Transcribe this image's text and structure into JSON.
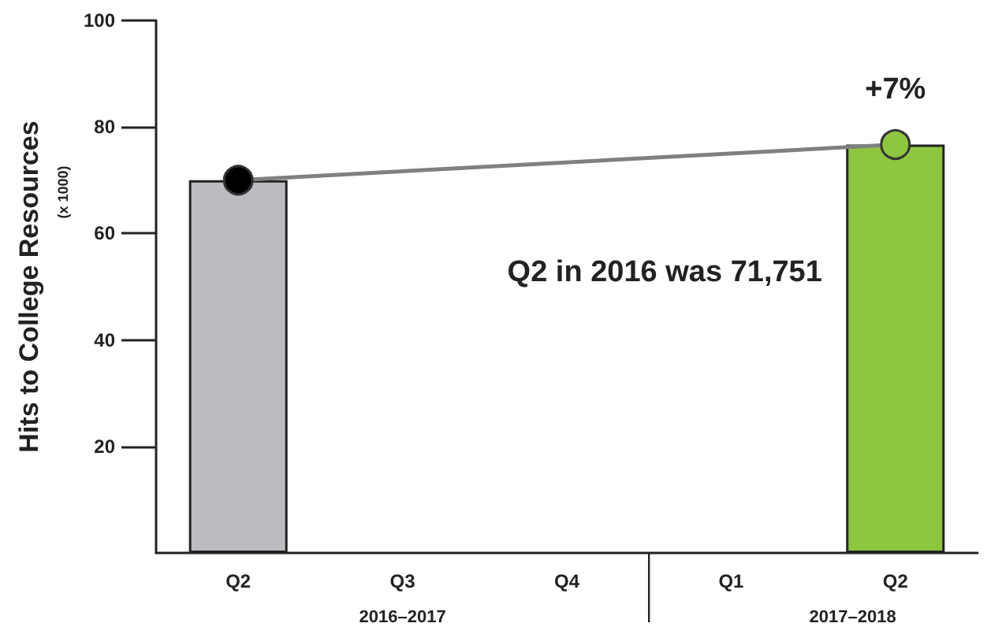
{
  "chart_data": {
    "type": "bar",
    "ylabel": "Hits to College Resources",
    "categories": [
      "Q2",
      "Q3",
      "Q4",
      "Q1",
      "Q2"
    ],
    "series": [
      {
        "colors": [
          "#bbbcc0",
          null,
          null,
          null,
          "#8dc63f"
        ],
        "values": [
          70,
          null,
          null,
          null,
          76.7
        ]
      },
      {
        "type": "line",
        "color": "#808080",
        "colors": [
          "#000000",
          null,
          null,
          null,
          "#8dc63f"
        ],
        "marker": "circle",
        "values": [
          70,
          null,
          null,
          null,
          76.7
        ]
      }
    ],
    "ylim": [
      0,
      100
    ],
    "yticks": [
      20,
      40,
      60,
      80,
      100
    ],
    "grid": false,
    "annotations": [
      "(x 1000)",
      "2016–2017",
      "2017–2018",
      "Q2 in 2016 was 71,751",
      "+7%"
    ]
  }
}
